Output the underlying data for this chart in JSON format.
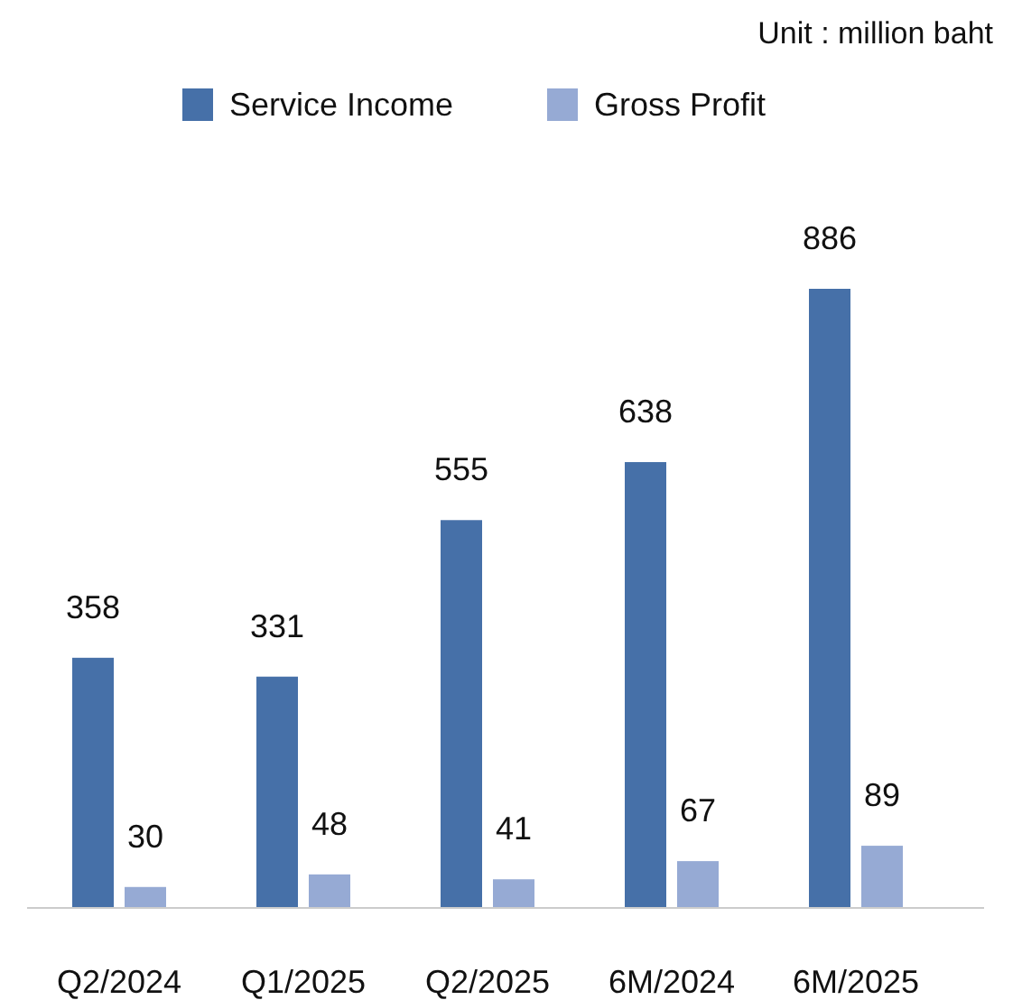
{
  "chart_data": {
    "type": "bar",
    "annotations": [
      "Unit : million baht"
    ],
    "categories": [
      "Q2/2024",
      "Q1/2025",
      "Q2/2025",
      "6M/2024",
      "6M/2025"
    ],
    "series": [
      {
        "name": "Service Income",
        "color": "#4670a8",
        "values": [
          358,
          331,
          555,
          638,
          886
        ]
      },
      {
        "name": "Gross Profit",
        "color": "#96aad4",
        "values": [
          30,
          48,
          41,
          67,
          89
        ]
      }
    ],
    "data_labels": true,
    "legend": "top",
    "grid": false
  }
}
